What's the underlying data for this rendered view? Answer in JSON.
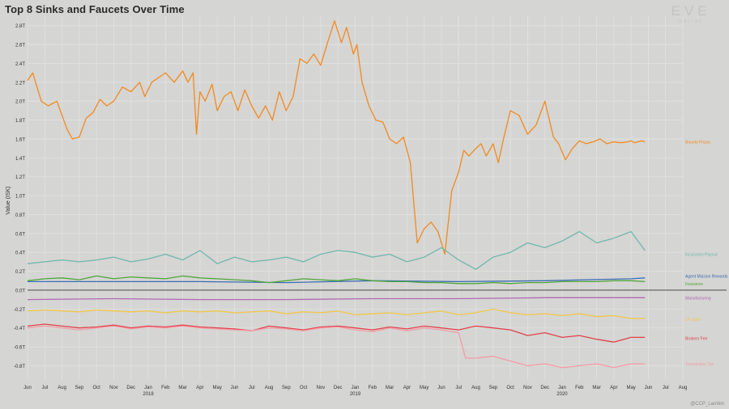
{
  "header": {
    "title": "Top 8 Sinks and Faucets Over Time",
    "logo_text": "EVE",
    "logo_subtext": "ONLINE",
    "credit": "@CCP_Larrikin"
  },
  "chart_data": {
    "type": "line",
    "title": "Top 8 Sinks and Faucets Over Time",
    "ylabel": "Value (ISK)",
    "xlabel": "",
    "ylim": [
      -0.95,
      2.9
    ],
    "grid": true,
    "yticks": [
      2.8,
      2.6,
      2.4,
      2.2,
      2.0,
      1.8,
      1.6,
      1.4,
      1.2,
      1.0,
      0.8,
      0.6,
      0.4,
      0.2,
      0.0,
      -0.2,
      -0.4,
      -0.6,
      -0.8
    ],
    "ytick_labels": [
      "2.8T",
      "2.6T",
      "2.4T",
      "2.2T",
      "2.0T",
      "1.8T",
      "1.6T",
      "1.4T",
      "1.2T",
      "1.0T",
      "0.8T",
      "0.6T",
      "0.4T",
      "0.2T",
      "0.0T",
      "-0.2T",
      "-0.4T",
      "-0.6T",
      "-0.8T"
    ],
    "xticks": [
      "Jun",
      "Jul",
      "Aug",
      "Sep",
      "Oct",
      "Nov",
      "Dec",
      "Jan",
      "Feb",
      "Mar",
      "Apr",
      "May",
      "Jun",
      "Jul",
      "Aug",
      "Sep",
      "Oct",
      "Nov",
      "Dec",
      "Jan",
      "Feb",
      "Mar",
      "Apr",
      "May",
      "Jun",
      "Jul",
      "Aug",
      "Sep",
      "Oct",
      "Nov",
      "Dec",
      "Jan",
      "Feb",
      "Mar",
      "Apr",
      "May",
      "Jun",
      "Jul",
      "Aug"
    ],
    "year_labels": [
      {
        "index": 7,
        "label": "2018"
      },
      {
        "index": 19,
        "label": "2019"
      },
      {
        "index": 31,
        "label": "2020"
      }
    ],
    "series": [
      {
        "name": "Bounty Prizes",
        "color": "#f28a1e",
        "x": [
          0,
          0.3,
          0.8,
          1.2,
          1.7,
          2.0,
          2.3,
          2.6,
          3.0,
          3.4,
          3.8,
          4.2,
          4.6,
          5.0,
          5.5,
          6.0,
          6.5,
          6.8,
          7.2,
          7.6,
          8.0,
          8.5,
          9.0,
          9.3,
          9.6,
          9.8,
          10.0,
          10.3,
          10.7,
          11.0,
          11.4,
          11.8,
          12.2,
          12.6,
          13.0,
          13.4,
          13.8,
          14.2,
          14.6,
          15.0,
          15.4,
          15.8,
          16.2,
          16.6,
          17.0,
          17.4,
          17.8,
          18.2,
          18.5,
          18.9,
          19.1,
          19.4,
          19.8,
          20.2,
          20.6,
          21.0,
          21.4,
          21.8,
          22.2,
          22.6,
          23.0,
          23.4,
          23.8,
          24.2,
          24.6,
          25.0,
          25.3,
          25.6,
          26.0,
          26.3,
          26.6,
          27.0,
          27.3,
          27.6,
          28.0,
          28.5,
          29.0,
          29.5,
          30.0,
          30.5,
          30.8,
          31.2,
          31.6,
          32.0,
          32.4,
          32.8,
          33.2,
          33.6,
          34.0,
          34.4,
          34.8,
          35.0,
          35.2,
          35.4,
          35.6,
          35.8
        ],
        "y": [
          2.22,
          2.3,
          2.0,
          1.95,
          2.0,
          1.85,
          1.7,
          1.6,
          1.62,
          1.82,
          1.88,
          2.02,
          1.95,
          2.0,
          2.15,
          2.1,
          2.2,
          2.05,
          2.2,
          2.25,
          2.3,
          2.2,
          2.32,
          2.2,
          2.3,
          1.65,
          2.1,
          2.0,
          2.18,
          1.9,
          2.05,
          2.1,
          1.9,
          2.12,
          1.95,
          1.82,
          1.95,
          1.8,
          2.1,
          1.9,
          2.05,
          2.45,
          2.4,
          2.5,
          2.38,
          2.62,
          2.85,
          2.62,
          2.78,
          2.5,
          2.6,
          2.2,
          1.95,
          1.8,
          1.78,
          1.6,
          1.55,
          1.62,
          1.35,
          0.5,
          0.65,
          0.72,
          0.62,
          0.38,
          1.05,
          1.25,
          1.48,
          1.42,
          1.5,
          1.55,
          1.42,
          1.55,
          1.35,
          1.6,
          1.9,
          1.85,
          1.65,
          1.75,
          2.0,
          1.62,
          1.55,
          1.38,
          1.5,
          1.58,
          1.55,
          1.57,
          1.6,
          1.55,
          1.57,
          1.56,
          1.57,
          1.58,
          1.56,
          1.57,
          1.58,
          1.57
        ],
        "label_y": 1.57
      },
      {
        "name": "Incursions Payout",
        "color": "#6fb7ad",
        "x": [
          0,
          1,
          2,
          3,
          4,
          5,
          6,
          7,
          8,
          9,
          10,
          11,
          12,
          13,
          14,
          15,
          16,
          17,
          18,
          19,
          20,
          21,
          22,
          23,
          24,
          25,
          26,
          27,
          28,
          29,
          30,
          31,
          32,
          33,
          34,
          35,
          35.8
        ],
        "y": [
          0.28,
          0.3,
          0.32,
          0.3,
          0.32,
          0.35,
          0.3,
          0.33,
          0.38,
          0.32,
          0.42,
          0.28,
          0.35,
          0.3,
          0.32,
          0.35,
          0.3,
          0.38,
          0.42,
          0.4,
          0.35,
          0.38,
          0.3,
          0.35,
          0.45,
          0.32,
          0.22,
          0.35,
          0.4,
          0.5,
          0.45,
          0.52,
          0.62,
          0.5,
          0.55,
          0.62,
          0.42
        ],
        "label_y": 0.38
      },
      {
        "name": "Agent Mission Rewards",
        "color": "#3a6db3",
        "x": [
          0,
          5,
          10,
          15,
          20,
          25,
          30,
          35,
          35.8
        ],
        "y": [
          0.09,
          0.09,
          0.09,
          0.08,
          0.1,
          0.09,
          0.1,
          0.12,
          0.13
        ],
        "label_y": 0.15
      },
      {
        "name": "Insurance",
        "color": "#4ea63a",
        "x": [
          0,
          1,
          2,
          3,
          4,
          5,
          6,
          7,
          8,
          9,
          10,
          11,
          12,
          13,
          14,
          15,
          16,
          17,
          18,
          19,
          20,
          21,
          22,
          23,
          24,
          25,
          26,
          27,
          28,
          29,
          30,
          31,
          32,
          33,
          34,
          35,
          35.8
        ],
        "y": [
          0.1,
          0.12,
          0.13,
          0.11,
          0.15,
          0.12,
          0.14,
          0.13,
          0.12,
          0.15,
          0.13,
          0.12,
          0.11,
          0.1,
          0.08,
          0.1,
          0.12,
          0.11,
          0.1,
          0.12,
          0.1,
          0.09,
          0.09,
          0.08,
          0.08,
          0.07,
          0.07,
          0.08,
          0.07,
          0.08,
          0.08,
          0.09,
          0.09,
          0.09,
          0.1,
          0.1,
          0.09
        ],
        "label_y": 0.07
      },
      {
        "name": "Manufacturing",
        "color": "#b06ab3",
        "x": [
          0,
          5,
          10,
          15,
          20,
          25,
          30,
          35,
          35.8
        ],
        "y": [
          -0.1,
          -0.09,
          -0.1,
          -0.1,
          -0.09,
          -0.09,
          -0.08,
          -0.08,
          -0.08
        ],
        "label_y": -0.08
      },
      {
        "name": "LP Store",
        "color": "#f0c84a",
        "x": [
          0,
          1,
          2,
          3,
          4,
          5,
          6,
          7,
          8,
          9,
          10,
          11,
          12,
          13,
          14,
          15,
          16,
          17,
          18,
          19,
          20,
          21,
          22,
          23,
          24,
          25,
          26,
          27,
          28,
          29,
          30,
          31,
          32,
          33,
          34,
          35,
          35.8
        ],
        "y": [
          -0.22,
          -0.21,
          -0.22,
          -0.23,
          -0.21,
          -0.22,
          -0.23,
          -0.22,
          -0.24,
          -0.22,
          -0.23,
          -0.22,
          -0.24,
          -0.23,
          -0.22,
          -0.25,
          -0.23,
          -0.24,
          -0.22,
          -0.26,
          -0.25,
          -0.24,
          -0.26,
          -0.24,
          -0.22,
          -0.26,
          -0.24,
          -0.2,
          -0.24,
          -0.26,
          -0.25,
          -0.27,
          -0.25,
          -0.28,
          -0.27,
          -0.3,
          -0.3
        ],
        "label_y": -0.31
      },
      {
        "name": "Brokers Fee",
        "color": "#e0434b",
        "x": [
          0,
          1,
          2,
          3,
          4,
          5,
          6,
          7,
          8,
          9,
          10,
          11,
          12,
          13,
          14,
          15,
          16,
          17,
          18,
          19,
          20,
          21,
          22,
          23,
          24,
          25,
          26,
          27,
          28,
          29,
          30,
          31,
          32,
          33,
          34,
          35,
          35.8
        ],
        "y": [
          -0.38,
          -0.36,
          -0.38,
          -0.4,
          -0.39,
          -0.37,
          -0.4,
          -0.38,
          -0.39,
          -0.37,
          -0.39,
          -0.4,
          -0.41,
          -0.43,
          -0.38,
          -0.4,
          -0.42,
          -0.39,
          -0.38,
          -0.4,
          -0.42,
          -0.39,
          -0.41,
          -0.38,
          -0.4,
          -0.42,
          -0.38,
          -0.4,
          -0.42,
          -0.48,
          -0.45,
          -0.5,
          -0.48,
          -0.52,
          -0.55,
          -0.5,
          -0.5
        ],
        "label_y": -0.51
      },
      {
        "name": "Transaction Tax",
        "color": "#f49ba6",
        "x": [
          0,
          1,
          2,
          3,
          4,
          5,
          6,
          7,
          8,
          9,
          10,
          11,
          12,
          13,
          14,
          15,
          16,
          17,
          18,
          19,
          20,
          21,
          22,
          23,
          24,
          25,
          25.4,
          26,
          27,
          28,
          29,
          30,
          31,
          32,
          33,
          34,
          35,
          35.8
        ],
        "y": [
          -0.4,
          -0.38,
          -0.4,
          -0.42,
          -0.4,
          -0.38,
          -0.41,
          -0.39,
          -0.4,
          -0.38,
          -0.4,
          -0.41,
          -0.42,
          -0.43,
          -0.4,
          -0.41,
          -0.43,
          -0.4,
          -0.39,
          -0.42,
          -0.44,
          -0.4,
          -0.43,
          -0.4,
          -0.42,
          -0.45,
          -0.72,
          -0.72,
          -0.7,
          -0.75,
          -0.8,
          -0.78,
          -0.82,
          -0.8,
          -0.78,
          -0.82,
          -0.78,
          -0.78
        ],
        "label_y": -0.78
      }
    ]
  }
}
